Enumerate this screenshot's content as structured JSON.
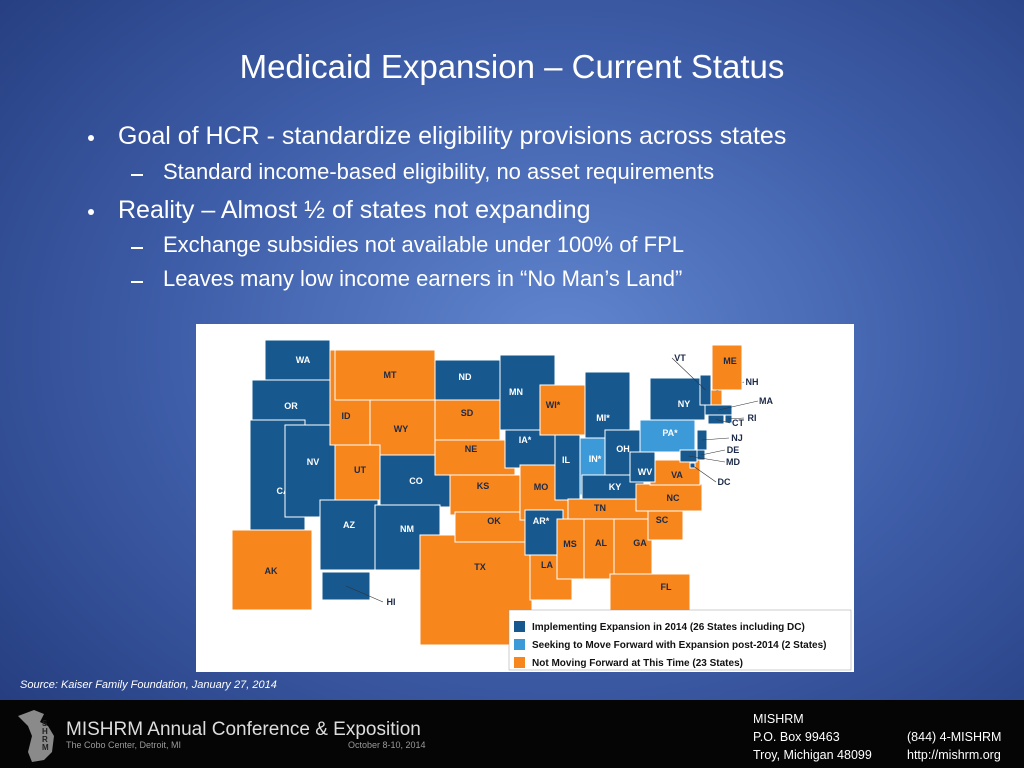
{
  "title": "Medicaid Expansion – Current Status",
  "bullets": [
    {
      "text": "Goal of HCR - standardize eligibility provisions across states",
      "level": 1
    },
    {
      "text": "Standard income-based eligibility, no asset requirements",
      "level": 2
    },
    {
      "text": "Reality – Almost ½ of states not expanding",
      "level": 1
    },
    {
      "text": "Exchange subsidies not available under 100% of FPL",
      "level": 2
    },
    {
      "text": "Leaves many low income earners in “No Man’s Land”",
      "level": 2
    }
  ],
  "map": {
    "legend": [
      {
        "label": "Implementing Expansion in 2014 (26 States including DC)",
        "status": "implementing",
        "color": "#17588f"
      },
      {
        "label": "Seeking to Move Forward with Expansion post-2014 (2 States)",
        "status": "seeking",
        "color": "#3d9ad8"
      },
      {
        "label": "Not Moving Forward at This Time (23 States)",
        "status": "not",
        "color": "#f7861c"
      }
    ],
    "states": [
      {
        "label": "WA",
        "status": "implementing"
      },
      {
        "label": "OR",
        "status": "implementing"
      },
      {
        "label": "CA",
        "status": "implementing"
      },
      {
        "label": "NV",
        "status": "implementing"
      },
      {
        "label": "ID",
        "status": "not"
      },
      {
        "label": "MT",
        "status": "not"
      },
      {
        "label": "WY",
        "status": "not"
      },
      {
        "label": "UT",
        "status": "not"
      },
      {
        "label": "CO",
        "status": "implementing"
      },
      {
        "label": "AZ",
        "status": "implementing"
      },
      {
        "label": "NM",
        "status": "implementing"
      },
      {
        "label": "ND",
        "status": "implementing"
      },
      {
        "label": "SD",
        "status": "not"
      },
      {
        "label": "NE",
        "status": "not"
      },
      {
        "label": "KS",
        "status": "not"
      },
      {
        "label": "TX",
        "status": "not"
      },
      {
        "label": "OK",
        "status": "not"
      },
      {
        "label": "MN",
        "status": "implementing"
      },
      {
        "label": "IA*",
        "status": "implementing"
      },
      {
        "label": "MO",
        "status": "not"
      },
      {
        "label": "AR*",
        "status": "implementing"
      },
      {
        "label": "LA",
        "status": "not"
      },
      {
        "label": "WI*",
        "status": "not"
      },
      {
        "label": "IL",
        "status": "implementing"
      },
      {
        "label": "IN*",
        "status": "seeking"
      },
      {
        "label": "MI*",
        "status": "implementing"
      },
      {
        "label": "OH",
        "status": "implementing"
      },
      {
        "label": "KY",
        "status": "implementing"
      },
      {
        "label": "TN",
        "status": "not"
      },
      {
        "label": "MS",
        "status": "not"
      },
      {
        "label": "AL",
        "status": "not"
      },
      {
        "label": "GA",
        "status": "not"
      },
      {
        "label": "FL",
        "status": "not"
      },
      {
        "label": "SC",
        "status": "not"
      },
      {
        "label": "NC",
        "status": "not"
      },
      {
        "label": "VA",
        "status": "not"
      },
      {
        "label": "WV",
        "status": "implementing"
      },
      {
        "label": "PA*",
        "status": "seeking"
      },
      {
        "label": "NY",
        "status": "implementing"
      },
      {
        "label": "VT",
        "status": "implementing"
      },
      {
        "label": "NH",
        "status": "not"
      },
      {
        "label": "ME",
        "status": "not"
      },
      {
        "label": "MA",
        "status": "implementing"
      },
      {
        "label": "RI",
        "status": "implementing"
      },
      {
        "label": "CT",
        "status": "implementing"
      },
      {
        "label": "NJ",
        "status": "implementing"
      },
      {
        "label": "DE",
        "status": "implementing"
      },
      {
        "label": "MD",
        "status": "implementing"
      },
      {
        "label": "DC",
        "status": "implementing"
      },
      {
        "label": "AK",
        "status": "not"
      },
      {
        "label": "HI",
        "status": "implementing"
      }
    ]
  },
  "source": "Source:  Kaiser Family Foundation, January 27, 2014",
  "footer": {
    "logo_text": "SHRM",
    "conference": "MISHRM Annual Conference & Exposition",
    "venue": "The Cobo Center, Detroit, MI",
    "dates": "October 8-10, 2014",
    "org": "MISHRM",
    "address1": "P.O. Box 99463",
    "address2": "Troy, Michigan 48099",
    "phone": "(844) 4-MISHRM",
    "web": "http://mishrm.org"
  }
}
